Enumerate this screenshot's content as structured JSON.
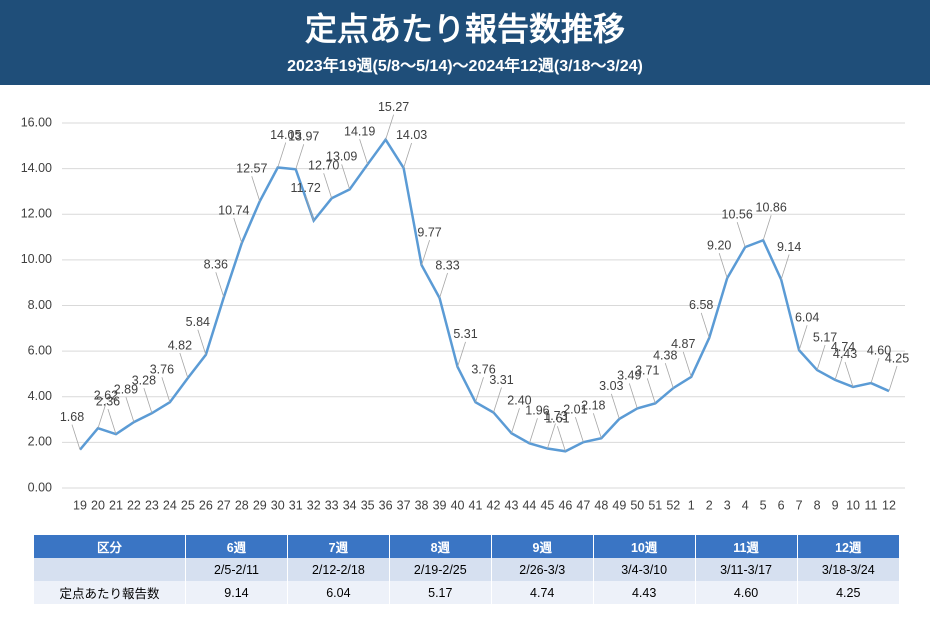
{
  "chart_data": {
    "type": "line",
    "title": "定点あたり報告数推移",
    "subtitle": "2023年19週(5/8～5/14)～2024年12週(3/18～3/24)",
    "categories": [
      "19",
      "20",
      "21",
      "22",
      "23",
      "24",
      "25",
      "26",
      "27",
      "28",
      "29",
      "30",
      "31",
      "32",
      "33",
      "34",
      "35",
      "36",
      "37",
      "38",
      "39",
      "40",
      "41",
      "42",
      "43",
      "44",
      "45",
      "46",
      "47",
      "48",
      "49",
      "50",
      "51",
      "52",
      "1",
      "2",
      "3",
      "4",
      "5",
      "6",
      "7",
      "8",
      "9",
      "10",
      "11",
      "12"
    ],
    "series": [
      {
        "color": "#5b9bd5",
        "values": [
          1.68,
          2.62,
          2.36,
          2.89,
          3.28,
          3.76,
          4.82,
          5.84,
          8.36,
          10.74,
          12.57,
          14.05,
          13.97,
          11.72,
          12.7,
          13.09,
          14.19,
          15.27,
          14.03,
          9.77,
          8.33,
          5.31,
          3.76,
          3.31,
          2.4,
          1.96,
          1.73,
          1.61,
          2.01,
          2.18,
          3.03,
          3.49,
          3.71,
          4.38,
          4.87,
          6.58,
          9.2,
          10.56,
          10.86,
          9.14,
          6.04,
          5.17,
          4.74,
          4.43,
          4.6,
          4.25
        ],
        "value_labels": [
          "1.68",
          "2.62",
          "2.36",
          "2.89",
          "3.28",
          "3.76",
          "4.82",
          "5.84",
          "8.36",
          "10.74",
          "12.57",
          "14.05",
          "13.97",
          "11.72",
          "12.70",
          "13.09",
          "14.19",
          "15.27",
          "14.03",
          "9.77",
          "8.33",
          "5.31",
          "3.76",
          "3.31",
          "2.40",
          "1.96",
          "1.73",
          "1.61",
          "2.01",
          "2.18",
          "3.03",
          "3.49",
          "3.71",
          "4.38",
          "4.87",
          "6.58",
          "9.20",
          "10.56",
          "10.86",
          "9.14",
          "6.04",
          "5.17",
          "4.74",
          "4.43",
          "4.60",
          "4.25"
        ]
      }
    ],
    "ylim": [
      0,
      16
    ],
    "yticks": [
      {
        "value": 0,
        "label": "0.00"
      },
      {
        "value": 2,
        "label": "2.00"
      },
      {
        "value": 4,
        "label": "4.00"
      },
      {
        "value": 6,
        "label": "6.00"
      },
      {
        "value": 8,
        "label": "8.00"
      },
      {
        "value": 10,
        "label": "10.00"
      },
      {
        "value": 12,
        "label": "12.00"
      },
      {
        "value": 14,
        "label": "14.00"
      },
      {
        "value": 16,
        "label": "16.00"
      }
    ],
    "grid": true
  },
  "table": {
    "header": [
      "区分",
      "6週",
      "7週",
      "8週",
      "9週",
      "10週",
      "11週",
      "12週"
    ],
    "periods": [
      "2/5-2/11",
      "2/12-2/18",
      "2/19-2/25",
      "2/26-3/3",
      "3/4-3/10",
      "3/11-3/17",
      "3/18-3/24"
    ],
    "row_label": "定点あたり報告数",
    "row_values": [
      "9.14",
      "6.04",
      "5.17",
      "4.74",
      "4.43",
      "4.60",
      "4.25"
    ]
  }
}
